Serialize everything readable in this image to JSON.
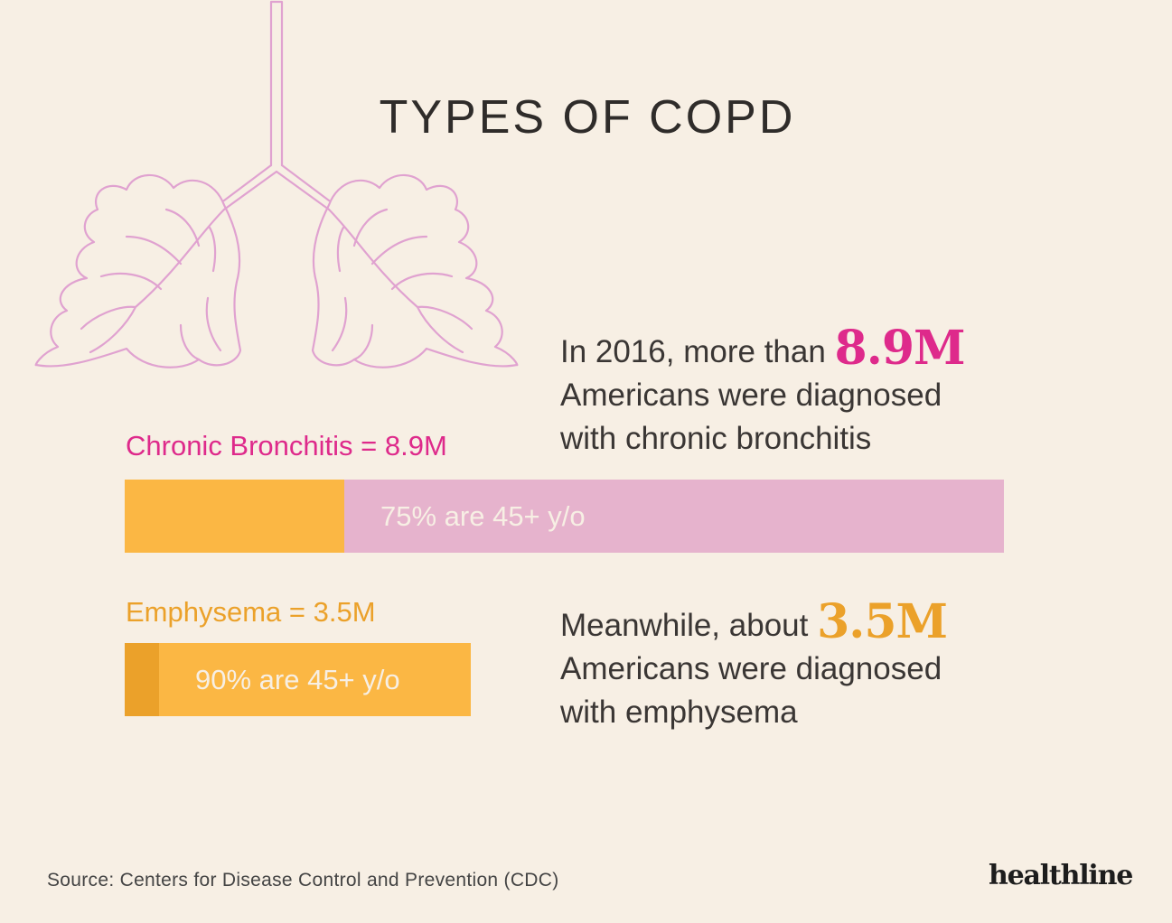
{
  "title": "TYPES OF COPD",
  "colors": {
    "background": "#f7efe4",
    "pink": "#de2a8b",
    "pink_light": "#e6b3cd",
    "orange": "#fbb744",
    "orange_dark": "#eba12a",
    "orange_text": "#eba12a",
    "lung_outline": "#e0a2d0"
  },
  "illustration": {
    "name": "lungs-icon"
  },
  "stats": [
    {
      "prefix": "In 2016, more than ",
      "highlight": "8.9M",
      "line2": "Americans were diagnosed",
      "line3": "with chronic bronchitis"
    },
    {
      "prefix": "Meanwhile, about ",
      "highlight": "3.5M",
      "line2": "Americans were diagnosed",
      "line3": "with emphysema"
    }
  ],
  "chart_data": {
    "type": "bar",
    "orientation": "horizontal",
    "categories": [
      "Chronic Bronchitis",
      "Emphysema"
    ],
    "labels": [
      "Chronic Bronchitis = 8.9M",
      "Emphysema = 3.5M"
    ],
    "values": [
      8.9,
      3.5
    ],
    "units": "M",
    "age_45_plus_share": [
      0.75,
      0.9
    ],
    "bar_texts": [
      "75% are 45+ y/o",
      "90% are 45+ y/o"
    ],
    "title": "",
    "xlabel": "",
    "ylabel": ""
  },
  "source": "Source: Centers for Disease Control and Prevention (CDC)",
  "logo": "healthline"
}
